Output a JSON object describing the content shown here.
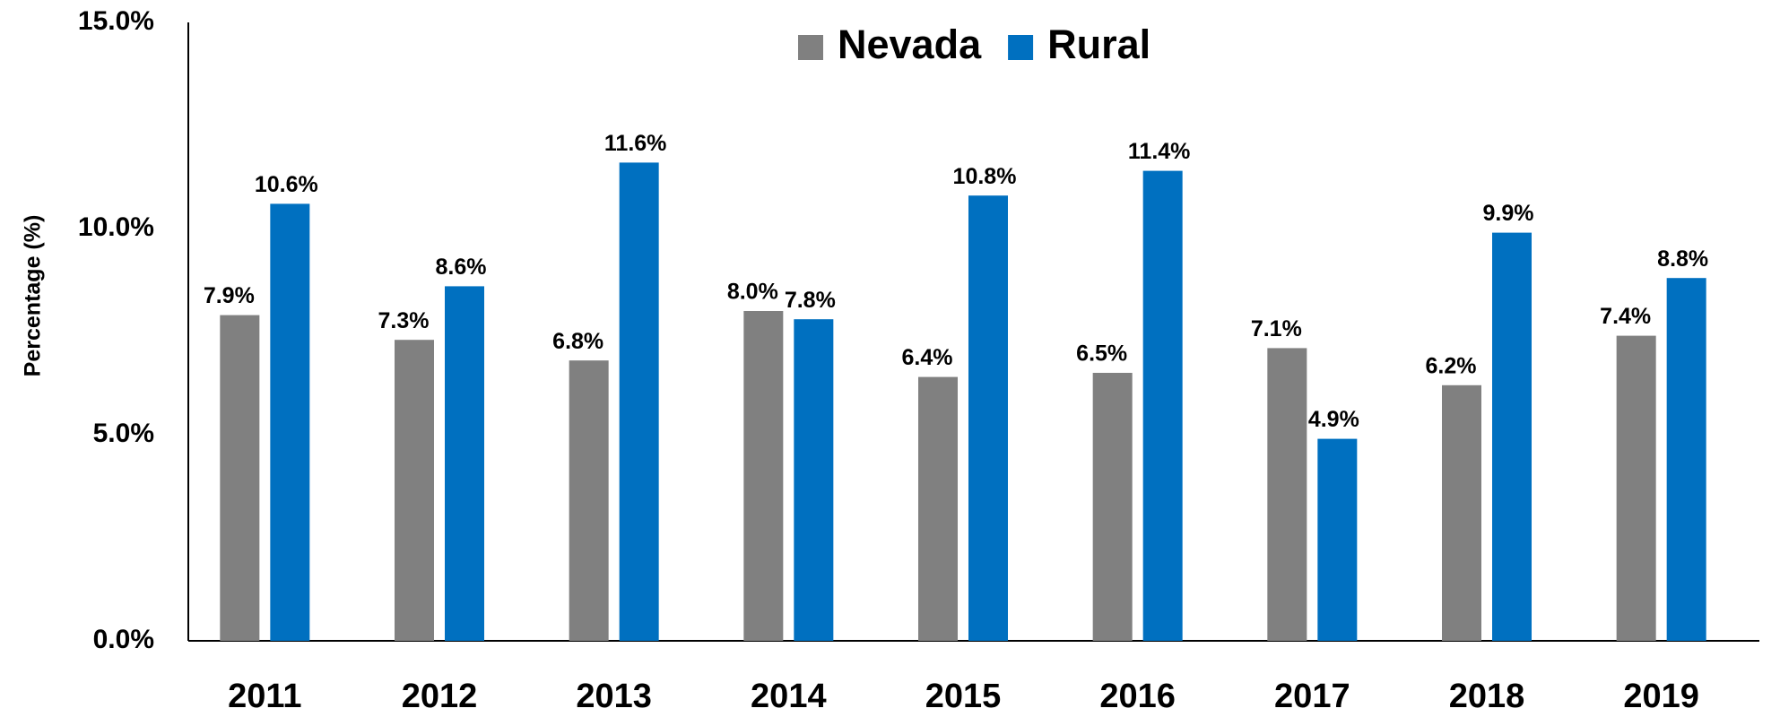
{
  "chart_data": {
    "type": "bar",
    "y_label": "Percentage (%)",
    "categories": [
      "2011",
      "2012",
      "2013",
      "2014",
      "2015",
      "2016",
      "2017",
      "2018",
      "2019"
    ],
    "series": [
      {
        "name": "Nevada",
        "color": "#808080",
        "values": [
          7.9,
          7.3,
          6.8,
          8.0,
          6.4,
          6.5,
          7.1,
          6.2,
          7.4
        ],
        "value_labels": [
          "7.9%",
          "7.3%",
          "6.8%",
          "8.0%",
          "6.4%",
          "6.5%",
          "7.1%",
          "6.2%",
          "7.4%"
        ]
      },
      {
        "name": "Rural",
        "color": "#0070c0",
        "values": [
          10.6,
          8.6,
          11.6,
          7.8,
          10.8,
          11.4,
          4.9,
          9.9,
          8.8
        ],
        "value_labels": [
          "10.6%",
          "8.6%",
          "11.6%",
          "7.8%",
          "10.8%",
          "11.4%",
          "4.9%",
          "9.9%",
          "8.8%"
        ]
      }
    ],
    "ylim": [
      0,
      15
    ],
    "yticks": [
      {
        "value": 0,
        "label": "0.0%"
      },
      {
        "value": 5,
        "label": "5.0%"
      },
      {
        "value": 10,
        "label": "10.0%"
      },
      {
        "value": 15,
        "label": "15.0%"
      }
    ],
    "grid": false,
    "legend": "top"
  }
}
